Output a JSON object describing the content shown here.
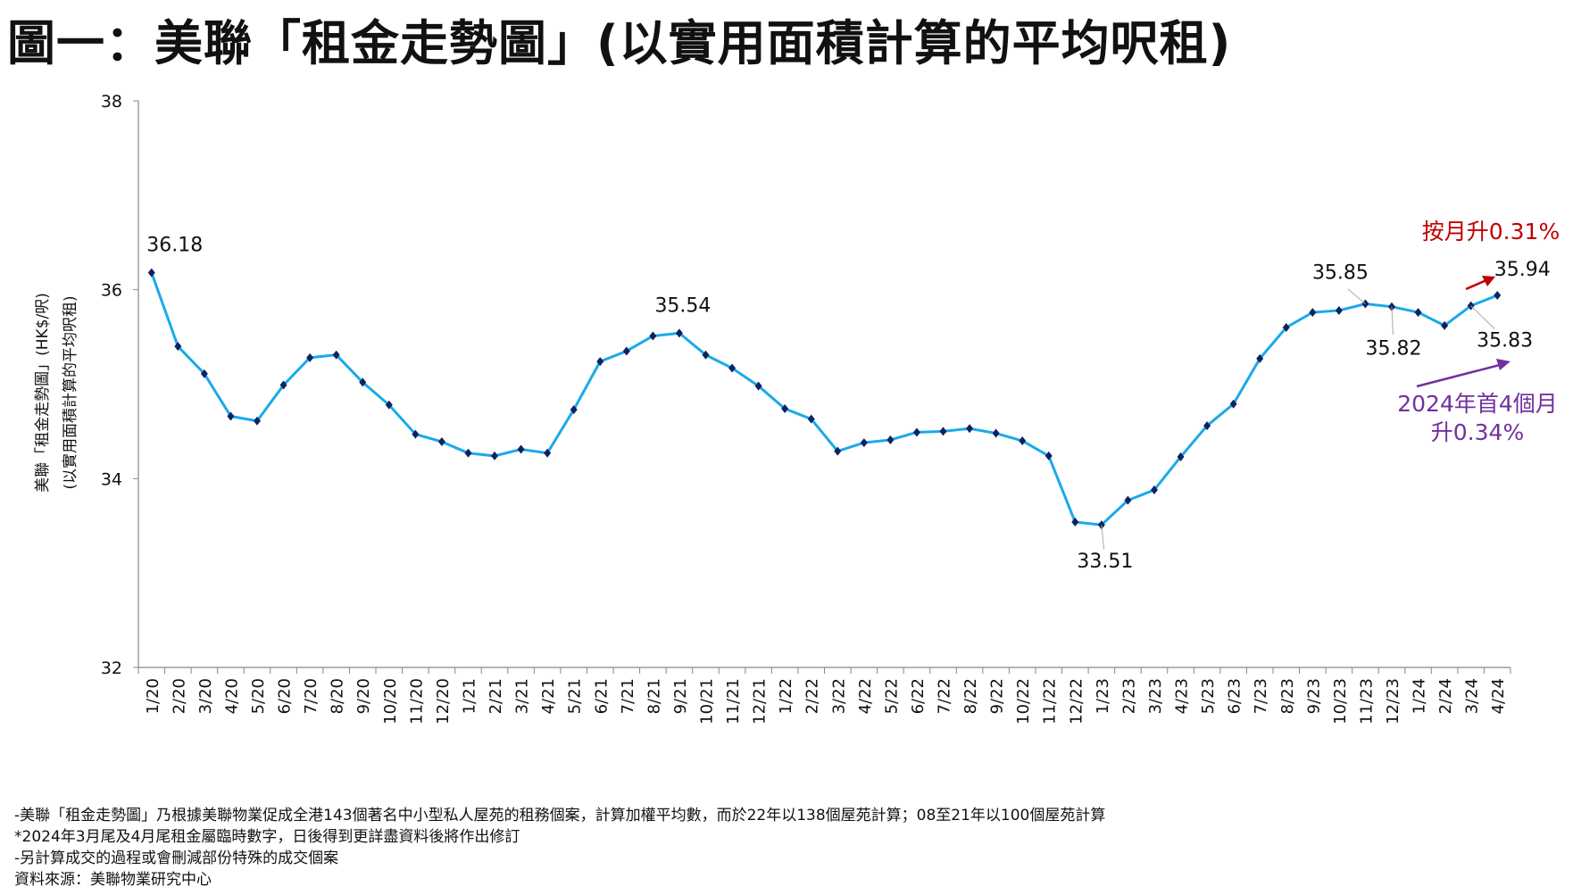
{
  "title": "圖一：美聯「租金走勢圖」(以實用面積計算的平均呎租)",
  "chart_data": {
    "type": "line",
    "title": "圖一：美聯「租金走勢圖」(以實用面積計算的平均呎租)",
    "ylabel": [
      "美聯「租金走勢圖」(HK$/呎)",
      "(以實用面積計算的平均呎租)"
    ],
    "xlabel": "",
    "ylim": [
      32,
      38
    ],
    "yticks": [
      "32",
      "34",
      "36",
      "38"
    ],
    "grid": false,
    "series_color": "#1aaae8",
    "marker_color": "#0d2260",
    "categories": [
      "1/20",
      "2/20",
      "3/20",
      "4/20",
      "5/20",
      "6/20",
      "7/20",
      "8/20",
      "9/20",
      "10/20",
      "11/20",
      "12/20",
      "1/21",
      "2/21",
      "3/21",
      "4/21",
      "5/21",
      "6/21",
      "7/21",
      "8/21",
      "9/21",
      "10/21",
      "11/21",
      "12/21",
      "1/22",
      "2/22",
      "3/22",
      "4/22",
      "5/22",
      "6/22",
      "7/22",
      "8/22",
      "9/22",
      "10/22",
      "11/22",
      "12/22",
      "1/23",
      "2/23",
      "3/23",
      "4/23",
      "5/23",
      "6/23",
      "7/23",
      "8/23",
      "9/23",
      "10/23",
      "11/23",
      "12/23",
      "1/24",
      "2/24",
      "3/24",
      "4/24"
    ],
    "values": [
      36.18,
      35.4,
      35.11,
      34.66,
      34.61,
      34.99,
      35.28,
      35.31,
      35.02,
      34.78,
      34.47,
      34.39,
      34.27,
      34.24,
      34.31,
      34.27,
      34.73,
      35.24,
      35.35,
      35.51,
      35.54,
      35.31,
      35.17,
      34.98,
      34.74,
      34.63,
      34.29,
      34.38,
      34.41,
      34.49,
      34.5,
      34.53,
      34.48,
      34.4,
      34.24,
      33.54,
      33.51,
      33.77,
      33.88,
      34.23,
      34.56,
      34.79,
      35.27,
      35.6,
      35.76,
      35.78,
      35.85,
      35.82,
      35.76,
      35.62,
      35.83,
      35.94
    ],
    "data_labels": [
      {
        "category": "1/20",
        "text": "36.18"
      },
      {
        "category": "9/21",
        "text": "35.54"
      },
      {
        "category": "1/23",
        "text": "33.51"
      },
      {
        "category": "11/23",
        "text": "35.85"
      },
      {
        "category": "12/23",
        "text": "35.82"
      },
      {
        "category": "3/24",
        "text": "35.83"
      },
      {
        "category": "4/24",
        "text": "35.94"
      }
    ],
    "annotations": [
      {
        "text": "按月升0.31%",
        "color": "#c00000"
      },
      {
        "lines": [
          "2024年首4個月",
          "升0.34%"
        ],
        "color": "#7030a0"
      }
    ]
  },
  "footnotes": [
    "-美聯「租金走勢圖」乃根據美聯物業促成全港143個著名中小型私人屋苑的租務個案，計算加權平均數，而於22年以138個屋苑計算；08至21年以100個屋苑計算",
    "*2024年3月尾及4月尾租金屬臨時數字，日後得到更詳盡資料後將作出修訂",
    "-另計算成交的過程或會刪減部份特殊的成交個案",
    "資料來源：美聯物業研究中心"
  ]
}
